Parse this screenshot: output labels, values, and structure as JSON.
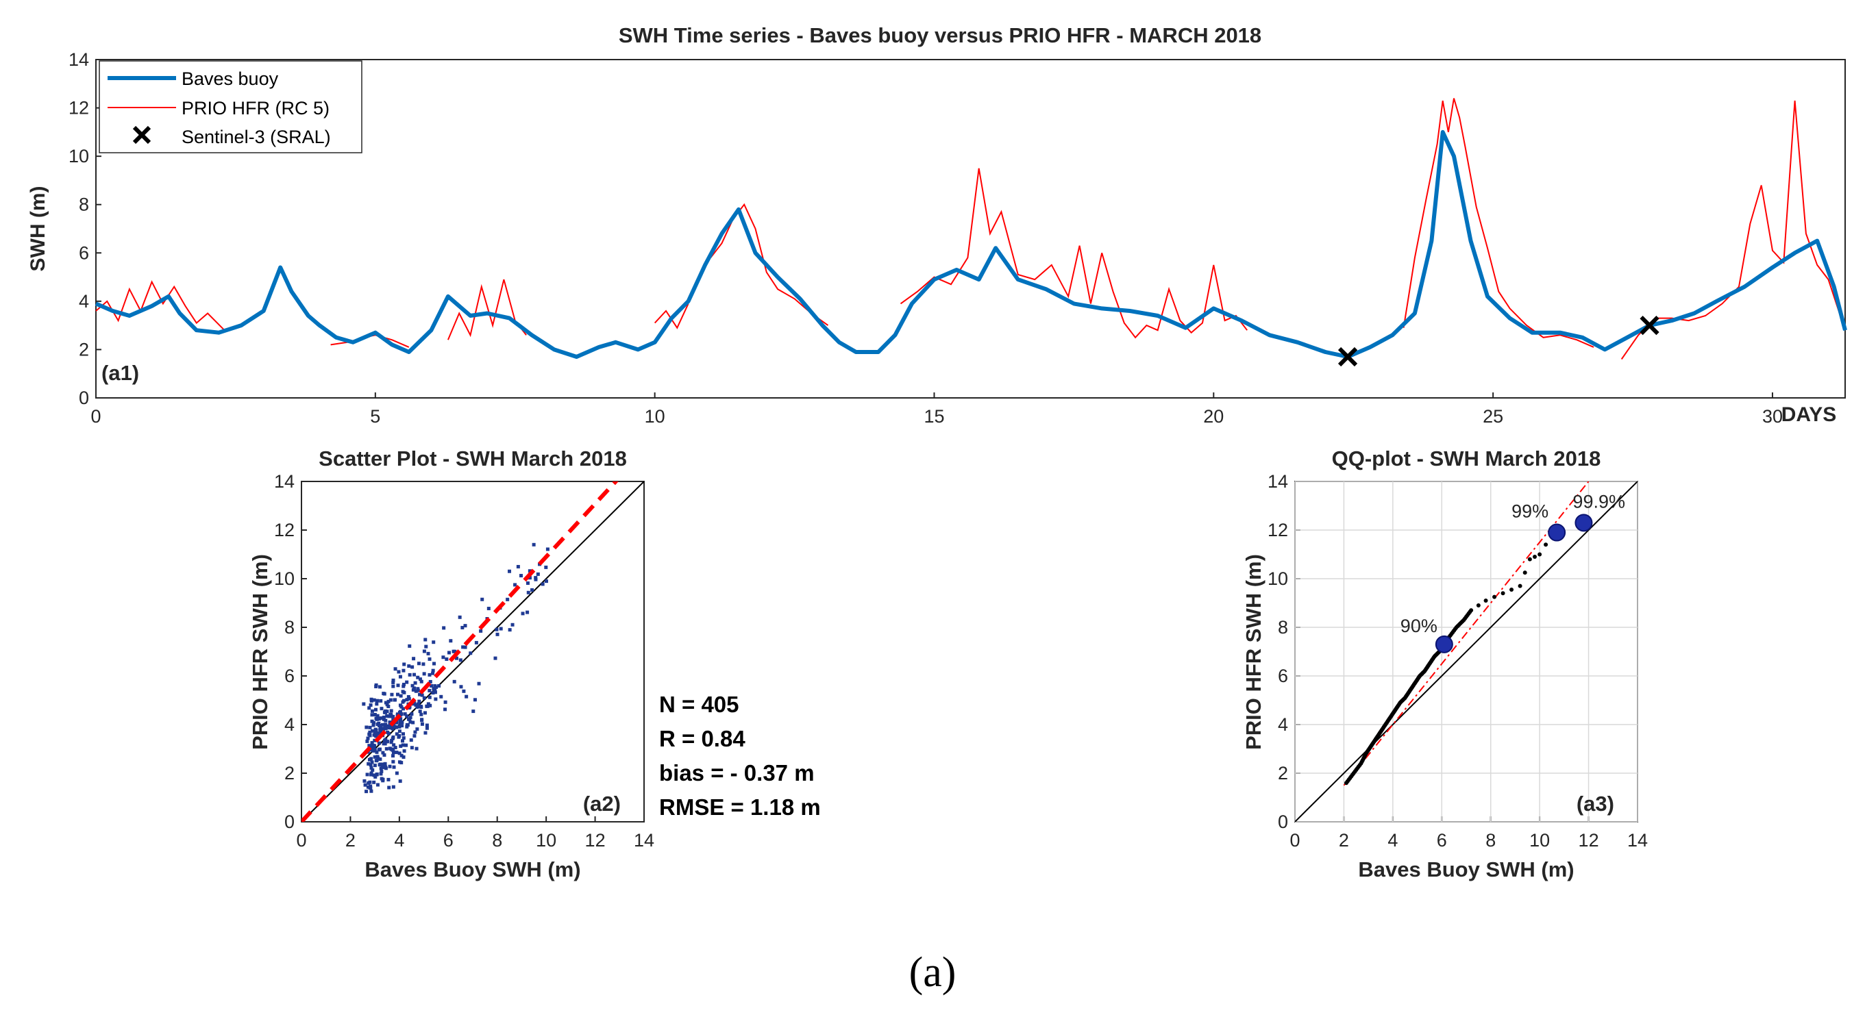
{
  "figure_caption": "(a)",
  "chart_data": [
    {
      "id": "a1",
      "type": "line",
      "title": "SWH Time series - Baves buoy versus PRIO HFR - MARCH 2018",
      "xlabel": "DAYS",
      "ylabel": "SWH (m)",
      "panel_label": "(a1)",
      "xlim": [
        0,
        31.3
      ],
      "ylim": [
        0,
        14
      ],
      "xticks": [
        0,
        5,
        10,
        15,
        20,
        25,
        30
      ],
      "yticks": [
        0,
        2,
        4,
        6,
        8,
        10,
        12,
        14
      ],
      "grid": false,
      "legend": "top-left",
      "series": [
        {
          "name": "Baves buoy",
          "color": "#0072BD",
          "x": [
            0,
            0.3,
            0.6,
            1.0,
            1.3,
            1.5,
            1.8,
            2.2,
            2.6,
            3.0,
            3.3,
            3.5,
            3.8,
            4.0,
            4.3,
            4.6,
            5.0,
            5.3,
            5.6,
            6.0,
            6.3,
            6.7,
            7.0,
            7.4,
            7.8,
            8.2,
            8.6,
            9.0,
            9.3,
            9.7,
            10.0,
            10.3,
            10.6,
            10.9,
            11.2,
            11.5,
            11.8,
            12.2,
            12.6,
            13.0,
            13.3,
            13.6,
            14.0,
            14.3,
            14.6,
            15.0,
            15.4,
            15.8,
            16.1,
            16.5,
            17.0,
            17.5,
            18.0,
            18.5,
            19.0,
            19.5,
            20.0,
            20.5,
            21.0,
            21.5,
            22.0,
            22.4,
            22.8,
            23.2,
            23.6,
            23.9,
            24.1,
            24.3,
            24.6,
            24.9,
            25.3,
            25.7,
            26.2,
            26.6,
            27.0,
            27.4,
            27.8,
            28.2,
            28.6,
            29.0,
            29.5,
            30.0,
            30.4,
            30.8,
            31.1,
            31.3
          ],
          "y": [
            3.9,
            3.6,
            3.4,
            3.8,
            4.2,
            3.5,
            2.8,
            2.7,
            3.0,
            3.6,
            5.4,
            4.4,
            3.4,
            3.0,
            2.5,
            2.3,
            2.7,
            2.2,
            1.9,
            2.8,
            4.2,
            3.4,
            3.5,
            3.3,
            2.6,
            2.0,
            1.7,
            2.1,
            2.3,
            2.0,
            2.3,
            3.3,
            4.0,
            5.5,
            6.8,
            7.8,
            6.0,
            5.0,
            4.1,
            3.0,
            2.3,
            1.9,
            1.9,
            2.6,
            3.9,
            4.9,
            5.3,
            4.9,
            6.2,
            4.9,
            4.5,
            3.9,
            3.7,
            3.6,
            3.4,
            2.9,
            3.7,
            3.2,
            2.6,
            2.3,
            1.9,
            1.7,
            2.1,
            2.6,
            3.5,
            6.5,
            11.0,
            10.0,
            6.5,
            4.2,
            3.3,
            2.7,
            2.7,
            2.5,
            2.0,
            2.5,
            3.0,
            3.2,
            3.5,
            4.0,
            4.6,
            5.4,
            6.0,
            6.5,
            4.6,
            2.8
          ]
        },
        {
          "name": "PRIO HFR (RC 5)",
          "color": "#FF0000",
          "segments": [
            {
              "x": [
                0.0,
                0.2,
                0.4,
                0.6,
                0.8,
                1.0,
                1.2,
                1.4,
                1.6,
                1.8,
                2.0,
                2.3
              ],
              "y": [
                3.6,
                4.0,
                3.2,
                4.5,
                3.6,
                4.8,
                3.9,
                4.6,
                3.8,
                3.1,
                3.5,
                2.8
              ]
            },
            {
              "x": [
                4.2,
                4.5,
                4.8,
                5.0,
                5.3,
                5.6
              ],
              "y": [
                2.2,
                2.3,
                2.5,
                2.6,
                2.4,
                2.1
              ]
            },
            {
              "x": [
                6.3,
                6.5,
                6.7,
                6.9,
                7.1,
                7.3,
                7.5,
                7.7
              ],
              "y": [
                2.4,
                3.5,
                2.6,
                4.6,
                3.0,
                4.9,
                3.2,
                2.6
              ]
            },
            {
              "x": [
                10.0,
                10.2,
                10.4,
                10.6
              ],
              "y": [
                3.1,
                3.6,
                2.9,
                3.9
              ]
            },
            {
              "x": [
                11.0,
                11.2,
                11.4,
                11.6,
                11.8,
                12.0,
                12.2,
                12.5,
                12.8,
                13.1
              ],
              "y": [
                5.8,
                6.4,
                7.4,
                8.0,
                7.0,
                5.2,
                4.5,
                4.1,
                3.5,
                3.0
              ]
            },
            {
              "x": [
                14.4,
                14.7,
                15.0,
                15.3,
                15.6,
                15.8,
                16.0,
                16.2,
                16.5,
                16.8,
                17.1,
                17.4,
                17.6,
                17.8,
                18.0,
                18.2,
                18.4,
                18.6,
                18.8,
                19.0,
                19.2,
                19.4,
                19.6,
                19.8,
                20.0,
                20.2,
                20.4,
                20.6
              ],
              "y": [
                3.9,
                4.4,
                5.0,
                4.7,
                5.8,
                9.5,
                6.8,
                7.7,
                5.1,
                4.9,
                5.5,
                4.2,
                6.3,
                3.9,
                6.0,
                4.4,
                3.1,
                2.5,
                3.0,
                2.8,
                4.5,
                3.2,
                2.7,
                3.1,
                5.5,
                3.2,
                3.4,
                2.8
              ]
            },
            {
              "x": [
                23.4,
                23.6,
                23.8,
                24.0,
                24.1,
                24.2,
                24.3,
                24.4,
                24.5,
                24.7,
                24.9,
                25.1,
                25.3,
                25.6,
                25.9,
                26.2,
                26.5,
                26.8
              ],
              "y": [
                2.9,
                5.8,
                8.2,
                10.5,
                12.3,
                11.0,
                12.4,
                11.6,
                10.4,
                7.9,
                6.2,
                4.4,
                3.7,
                3.0,
                2.5,
                2.6,
                2.4,
                2.1
              ]
            },
            {
              "x": [
                27.3,
                27.6,
                27.9,
                28.2,
                28.5,
                28.8,
                29.1,
                29.4,
                29.6,
                29.8,
                30.0,
                30.2,
                30.4,
                30.6,
                30.8,
                31.0,
                31.2,
                31.3
              ],
              "y": [
                1.6,
                2.6,
                3.3,
                3.3,
                3.2,
                3.4,
                3.9,
                4.6,
                7.2,
                8.8,
                6.1,
                5.6,
                12.3,
                6.8,
                5.5,
                4.9,
                3.5,
                3.0
              ]
            }
          ]
        },
        {
          "name": "Sentinel-3 (SRAL)",
          "color": "#000000",
          "marker": "x",
          "x": [
            22.4,
            27.8
          ],
          "y": [
            1.7,
            3.0
          ]
        }
      ]
    },
    {
      "id": "a2",
      "type": "scatter",
      "title": "Scatter Plot - SWH March 2018",
      "xlabel": "Baves Buoy SWH (m)",
      "ylabel": "PRIO HFR SWH (m)",
      "panel_label": "(a2)",
      "xlim": [
        0,
        14
      ],
      "ylim": [
        0,
        14
      ],
      "xticks": [
        0,
        2,
        4,
        6,
        8,
        10,
        12,
        14
      ],
      "yticks": [
        0,
        2,
        4,
        6,
        8,
        10,
        12,
        14
      ],
      "grid": false,
      "points_color": "#1F3A93",
      "n_points": 405,
      "fit_line": {
        "slope": 1.09,
        "intercept": 0.0,
        "color": "#FF0000",
        "style": "dashed"
      },
      "identity_line": {
        "slope": 1.0,
        "color": "#000000"
      },
      "stats": [
        "N = 405",
        "R = 0.84",
        "bias = - 0.37 m",
        "RMSE = 1.18 m"
      ]
    },
    {
      "id": "a3",
      "type": "scatter",
      "title": "QQ-plot - SWH March 2018",
      "xlabel": "Baves Buoy SWH (m)",
      "ylabel": "PRIO HFR SWH (m)",
      "panel_label": "(a3)",
      "xlim": [
        0,
        14
      ],
      "ylim": [
        0,
        14
      ],
      "xticks": [
        0,
        2,
        4,
        6,
        8,
        10,
        12,
        14
      ],
      "yticks": [
        0,
        2,
        4,
        6,
        8,
        10,
        12,
        14
      ],
      "grid": true,
      "quantiles": {
        "x": [
          2.1,
          2.4,
          2.7,
          2.9,
          3.1,
          3.3,
          3.5,
          3.7,
          3.9,
          4.1,
          4.3,
          4.5,
          4.7,
          4.9,
          5.1,
          5.3,
          5.5,
          5.7,
          5.9,
          6.1,
          6.3,
          6.6,
          6.9,
          7.2,
          7.8,
          8.5,
          9.2,
          9.6,
          10.0,
          10.5
        ],
        "y": [
          1.6,
          2.0,
          2.4,
          2.8,
          3.1,
          3.4,
          3.7,
          4.0,
          4.3,
          4.6,
          4.9,
          5.1,
          5.4,
          5.7,
          6.0,
          6.2,
          6.5,
          6.8,
          7.0,
          7.3,
          7.6,
          8.0,
          8.3,
          8.7,
          9.1,
          9.4,
          9.7,
          10.8,
          11.0,
          11.8
        ]
      },
      "percentiles": [
        {
          "label": "90%",
          "x": 6.1,
          "y": 7.3
        },
        {
          "label": "99%",
          "x": 10.7,
          "y": 11.9
        },
        {
          "label": "99.9%",
          "x": 11.8,
          "y": 12.3
        }
      ],
      "fit_line": {
        "slope": 1.25,
        "intercept": -1.0,
        "color": "#FF0000",
        "style": "dash-dot"
      },
      "identity_line": {
        "slope": 1.0,
        "color": "#000000"
      }
    }
  ]
}
